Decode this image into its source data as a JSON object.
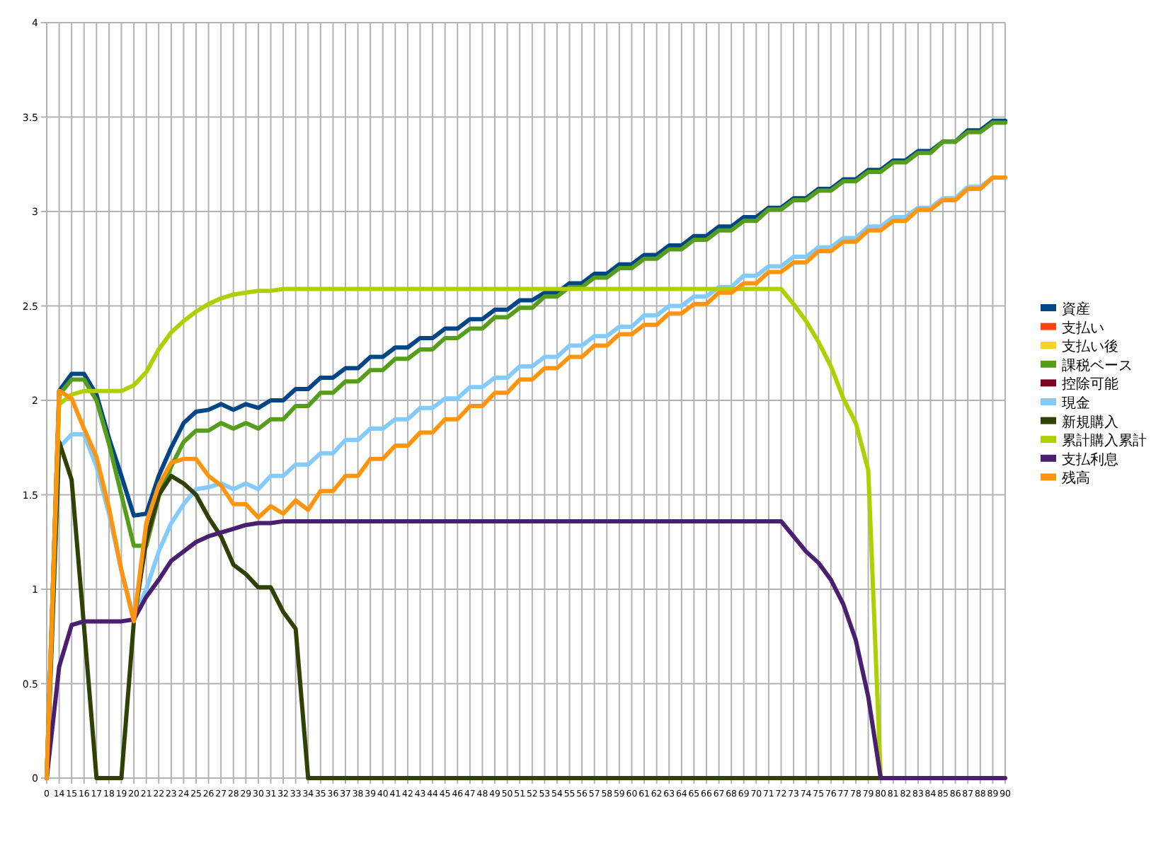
{
  "chart_data": {
    "type": "line",
    "categories": [
      "0",
      "14",
      "15",
      "16",
      "17",
      "18",
      "19",
      "20",
      "21",
      "22",
      "23",
      "24",
      "25",
      "26",
      "27",
      "28",
      "29",
      "30",
      "31",
      "32",
      "33",
      "34",
      "35",
      "36",
      "37",
      "38",
      "39",
      "40",
      "41",
      "42",
      "43",
      "44",
      "45",
      "46",
      "47",
      "48",
      "49",
      "50",
      "51",
      "52",
      "53",
      "54",
      "55",
      "56",
      "57",
      "58",
      "59",
      "60",
      "61",
      "62",
      "63",
      "64",
      "65",
      "66",
      "67",
      "68",
      "69",
      "70",
      "71",
      "72",
      "73",
      "74",
      "75",
      "76",
      "77",
      "78",
      "79",
      "80",
      "81",
      "82",
      "83",
      "84",
      "85",
      "86",
      "87",
      "88",
      "89",
      "90"
    ],
    "series": [
      {
        "name": "資産",
        "color": "#004586",
        "values": [
          0,
          2.05,
          2.14,
          2.14,
          2.03,
          1.8,
          1.6,
          1.39,
          1.4,
          1.6,
          1.75,
          1.88,
          1.94,
          1.95,
          1.98,
          1.95,
          1.98,
          1.96,
          2.0,
          2.0,
          2.06,
          2.06,
          2.12,
          2.12,
          2.17,
          2.17,
          2.23,
          2.23,
          2.28,
          2.28,
          2.33,
          2.33,
          2.38,
          2.38,
          2.43,
          2.43,
          2.48,
          2.48,
          2.53,
          2.53,
          2.57,
          2.57,
          2.62,
          2.62,
          2.67,
          2.67,
          2.72,
          2.72,
          2.77,
          2.77,
          2.82,
          2.82,
          2.87,
          2.87,
          2.92,
          2.92,
          2.97,
          2.97,
          3.02,
          3.02,
          3.07,
          3.07,
          3.12,
          3.12,
          3.17,
          3.17,
          3.22,
          3.22,
          3.27,
          3.27,
          3.32,
          3.32,
          3.37,
          3.37,
          3.43,
          3.43,
          3.48,
          3.48
        ]
      },
      {
        "name": "支払い",
        "color": "#ff420e",
        "values": [
          null,
          null,
          null,
          null,
          null,
          null,
          null,
          null,
          null,
          null,
          null,
          null,
          null,
          null,
          null,
          null,
          null,
          null,
          null,
          null,
          null,
          null,
          null,
          null,
          null,
          null,
          null,
          null,
          null,
          null,
          null,
          null,
          null,
          null,
          null,
          null,
          null,
          null,
          null,
          null,
          null,
          null,
          null,
          null,
          null,
          null,
          null,
          null,
          null,
          null,
          null,
          null,
          null,
          null,
          null,
          null,
          null,
          null,
          null,
          null,
          null,
          null,
          null,
          null,
          null,
          null,
          null,
          null,
          null,
          null,
          null,
          null,
          null,
          null,
          null,
          null,
          null,
          null
        ]
      },
      {
        "name": "支払い後",
        "color": "#ffd320",
        "values": [
          null,
          null,
          null,
          null,
          null,
          null,
          null,
          null,
          null,
          null,
          null,
          null,
          null,
          null,
          null,
          null,
          null,
          null,
          null,
          null,
          null,
          null,
          null,
          null,
          null,
          null,
          null,
          null,
          null,
          null,
          null,
          null,
          null,
          null,
          null,
          null,
          null,
          null,
          null,
          null,
          null,
          null,
          null,
          null,
          null,
          null,
          null,
          null,
          null,
          null,
          null,
          null,
          null,
          null,
          null,
          null,
          null,
          null,
          null,
          null,
          null,
          null,
          null,
          null,
          null,
          null,
          null,
          null,
          null,
          null,
          null,
          null,
          null,
          null,
          null,
          null,
          null,
          null
        ]
      },
      {
        "name": "課税ベース",
        "color": "#579d1c",
        "values": [
          0,
          2.03,
          2.11,
          2.11,
          2.0,
          1.77,
          1.5,
          1.23,
          1.23,
          1.49,
          1.65,
          1.78,
          1.84,
          1.84,
          1.88,
          1.85,
          1.88,
          1.85,
          1.9,
          1.9,
          1.97,
          1.97,
          2.04,
          2.04,
          2.1,
          2.1,
          2.16,
          2.16,
          2.22,
          2.22,
          2.27,
          2.27,
          2.33,
          2.33,
          2.38,
          2.38,
          2.44,
          2.44,
          2.49,
          2.49,
          2.55,
          2.55,
          2.6,
          2.6,
          2.65,
          2.65,
          2.7,
          2.7,
          2.75,
          2.75,
          2.8,
          2.8,
          2.85,
          2.85,
          2.9,
          2.9,
          2.95,
          2.95,
          3.01,
          3.01,
          3.06,
          3.06,
          3.11,
          3.11,
          3.16,
          3.16,
          3.21,
          3.21,
          3.26,
          3.26,
          3.31,
          3.31,
          3.37,
          3.37,
          3.42,
          3.42,
          3.47,
          3.47
        ]
      },
      {
        "name": "控除可能",
        "color": "#7e0021",
        "values": [
          null,
          null,
          null,
          null,
          null,
          null,
          null,
          null,
          null,
          null,
          null,
          null,
          null,
          null,
          null,
          null,
          null,
          null,
          null,
          null,
          null,
          null,
          null,
          null,
          null,
          null,
          null,
          null,
          null,
          null,
          null,
          null,
          null,
          null,
          null,
          null,
          null,
          null,
          null,
          null,
          null,
          null,
          null,
          null,
          null,
          null,
          null,
          null,
          null,
          null,
          null,
          null,
          null,
          null,
          null,
          null,
          null,
          null,
          null,
          null,
          null,
          null,
          null,
          null,
          null,
          null,
          null,
          null,
          null,
          null,
          null,
          null,
          null,
          null,
          null,
          null,
          null,
          null
        ]
      },
      {
        "name": "現金",
        "color": "#83caff",
        "values": [
          0,
          1.75,
          1.82,
          1.82,
          1.65,
          1.4,
          1.1,
          0.85,
          1.0,
          1.2,
          1.35,
          1.45,
          1.53,
          1.54,
          1.56,
          1.53,
          1.56,
          1.53,
          1.6,
          1.6,
          1.66,
          1.66,
          1.72,
          1.72,
          1.79,
          1.79,
          1.85,
          1.85,
          1.9,
          1.9,
          1.96,
          1.96,
          2.01,
          2.01,
          2.07,
          2.07,
          2.12,
          2.12,
          2.18,
          2.18,
          2.23,
          2.23,
          2.29,
          2.29,
          2.34,
          2.34,
          2.39,
          2.39,
          2.45,
          2.45,
          2.5,
          2.5,
          2.55,
          2.55,
          2.6,
          2.6,
          2.66,
          2.66,
          2.71,
          2.71,
          2.76,
          2.76,
          2.81,
          2.81,
          2.86,
          2.86,
          2.92,
          2.92,
          2.97,
          2.97,
          3.02,
          3.02,
          3.07,
          3.07,
          3.13,
          3.13,
          3.18,
          3.18
        ]
      },
      {
        "name": "新規購入",
        "color": "#314004",
        "values": [
          0,
          1.78,
          1.58,
          0.8,
          0,
          0,
          0,
          0.83,
          1.26,
          1.5,
          1.6,
          1.56,
          1.5,
          1.38,
          1.28,
          1.13,
          1.08,
          1.01,
          1.01,
          0.88,
          0.79,
          0,
          0,
          0,
          0,
          0,
          0,
          0,
          0,
          0,
          0,
          0,
          0,
          0,
          0,
          0,
          0,
          0,
          0,
          0,
          0,
          0,
          0,
          0,
          0,
          0,
          0,
          0,
          0,
          0,
          0,
          0,
          0,
          0,
          0,
          0,
          0,
          0,
          0,
          0,
          0,
          0,
          0,
          0,
          0,
          0,
          0,
          0,
          0,
          0,
          null,
          null,
          null,
          null,
          null,
          null,
          null,
          null
        ]
      },
      {
        "name": "累計購入累計",
        "color": "#aecf00",
        "values": [
          0,
          1.98,
          2.03,
          2.05,
          2.05,
          2.05,
          2.05,
          2.08,
          2.15,
          2.27,
          2.36,
          2.42,
          2.47,
          2.51,
          2.54,
          2.56,
          2.57,
          2.58,
          2.58,
          2.59,
          2.59,
          2.59,
          2.59,
          2.59,
          2.59,
          2.59,
          2.59,
          2.59,
          2.59,
          2.59,
          2.59,
          2.59,
          2.59,
          2.59,
          2.59,
          2.59,
          2.59,
          2.59,
          2.59,
          2.59,
          2.59,
          2.59,
          2.59,
          2.59,
          2.59,
          2.59,
          2.59,
          2.59,
          2.59,
          2.59,
          2.59,
          2.59,
          2.59,
          2.59,
          2.59,
          2.59,
          2.59,
          2.59,
          2.59,
          2.59,
          2.51,
          2.42,
          2.31,
          2.18,
          2.01,
          1.88,
          1.63,
          0,
          0,
          null,
          null,
          null,
          null,
          null,
          null,
          null,
          null,
          null
        ]
      },
      {
        "name": "支払利息",
        "color": "#4b1f6f",
        "values": [
          0,
          0.59,
          0.81,
          0.83,
          0.83,
          0.83,
          0.83,
          0.84,
          0.96,
          1.05,
          1.15,
          1.2,
          1.25,
          1.28,
          1.3,
          1.32,
          1.34,
          1.35,
          1.35,
          1.36,
          1.36,
          1.36,
          1.36,
          1.36,
          1.36,
          1.36,
          1.36,
          1.36,
          1.36,
          1.36,
          1.36,
          1.36,
          1.36,
          1.36,
          1.36,
          1.36,
          1.36,
          1.36,
          1.36,
          1.36,
          1.36,
          1.36,
          1.36,
          1.36,
          1.36,
          1.36,
          1.36,
          1.36,
          1.36,
          1.36,
          1.36,
          1.36,
          1.36,
          1.36,
          1.36,
          1.36,
          1.36,
          1.36,
          1.36,
          1.36,
          1.28,
          1.2,
          1.14,
          1.05,
          0.92,
          0.73,
          0.43,
          0,
          0,
          0,
          0,
          0,
          0,
          0,
          0,
          0,
          0,
          0
        ]
      },
      {
        "name": "残高",
        "color": "#ff950e",
        "values": [
          0,
          2.05,
          2.01,
          1.85,
          1.7,
          1.43,
          1.1,
          0.83,
          1.35,
          1.55,
          1.67,
          1.69,
          1.69,
          1.6,
          1.55,
          1.45,
          1.45,
          1.38,
          1.44,
          1.4,
          1.47,
          1.42,
          1.52,
          1.52,
          1.6,
          1.6,
          1.69,
          1.69,
          1.76,
          1.76,
          1.83,
          1.83,
          1.9,
          1.9,
          1.97,
          1.97,
          2.04,
          2.04,
          2.11,
          2.11,
          2.17,
          2.17,
          2.23,
          2.23,
          2.29,
          2.29,
          2.35,
          2.35,
          2.4,
          2.4,
          2.46,
          2.46,
          2.51,
          2.51,
          2.57,
          2.57,
          2.62,
          2.62,
          2.68,
          2.68,
          2.73,
          2.73,
          2.79,
          2.79,
          2.84,
          2.84,
          2.9,
          2.9,
          2.95,
          2.95,
          3.01,
          3.01,
          3.06,
          3.06,
          3.12,
          3.12,
          3.18,
          3.18
        ]
      }
    ],
    "ylim": [
      0,
      4
    ],
    "yticks": [
      0,
      0.5,
      1,
      1.5,
      2,
      2.5,
      3,
      3.5,
      4
    ],
    "grid": true,
    "legend": "right"
  }
}
